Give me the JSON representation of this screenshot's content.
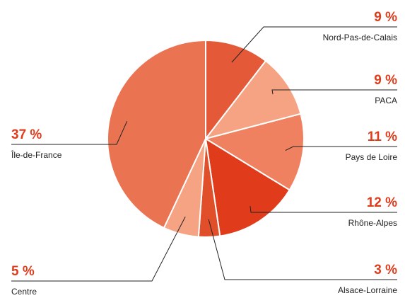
{
  "chart_data": {
    "type": "pie",
    "categories": [
      "Nord-Pas-de-Calais",
      "PACA",
      "Pays de Loire",
      "Rhône-Alpes",
      "Alsace-Lorraine",
      "Centre",
      "Île-de-France"
    ],
    "values": [
      9,
      9,
      11,
      12,
      3,
      5,
      37
    ],
    "value_labels": [
      "9 %",
      "9 %",
      "11 %",
      "12 %",
      "3 %",
      "5 %",
      "37 %"
    ],
    "colors": [
      "#e45a38",
      "#f5a383",
      "#ef8060",
      "#e03c1c",
      "#e04f2a",
      "#f5a383",
      "#ea7452"
    ]
  }
}
